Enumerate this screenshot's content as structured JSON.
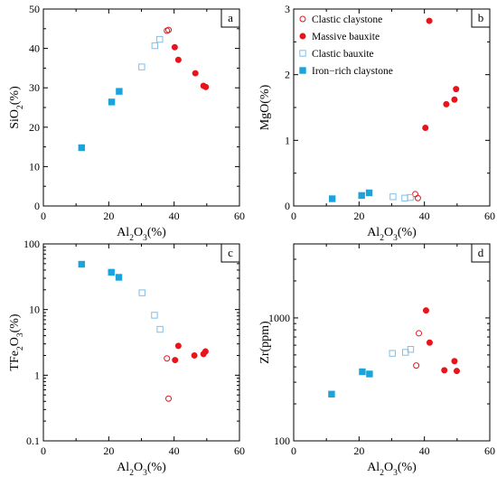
{
  "colors": {
    "red": "#e8141c",
    "blue": "#1aa3dc",
    "light_blue": "#7fbfe8",
    "axis": "#000000"
  },
  "legend_entries": [
    {
      "label": "Clastic claystone",
      "marker": "open-circle"
    },
    {
      "label": "Massive bauxite",
      "marker": "filled-circle"
    },
    {
      "label": "Clastic bauxite",
      "marker": "open-square"
    },
    {
      "label": "Iron−rich claystone",
      "marker": "filled-square"
    }
  ],
  "chart_data": [
    {
      "type": "scatter",
      "panel": "a",
      "xlabel": "Al2O3(%)",
      "ylabel": "SiO2(%)",
      "xlim": [
        0,
        60
      ],
      "ylim": [
        0,
        50
      ],
      "xticks": [
        0,
        20,
        40,
        60
      ],
      "yticks": [
        0,
        10,
        20,
        30,
        40,
        50
      ],
      "yscale": "linear",
      "legend": "none",
      "series": [
        {
          "name": "Clastic claystone",
          "points": [
            [
              37.8,
              44.5
            ],
            [
              38.3,
              44.7
            ]
          ]
        },
        {
          "name": "Massive bauxite",
          "points": [
            [
              40.2,
              40.3
            ],
            [
              41.3,
              37.1
            ],
            [
              46.5,
              33.7
            ],
            [
              49.0,
              30.5
            ],
            [
              49.7,
              30.2
            ]
          ]
        },
        {
          "name": "Clastic bauxite",
          "points": [
            [
              30.1,
              35.3
            ],
            [
              34.1,
              40.7
            ],
            [
              35.6,
              42.3
            ]
          ]
        },
        {
          "name": "Iron−rich claystone",
          "points": [
            [
              11.7,
              14.8
            ],
            [
              20.9,
              26.4
            ],
            [
              23.2,
              29.1
            ]
          ]
        }
      ]
    },
    {
      "type": "scatter",
      "panel": "b",
      "xlabel": "Al2O3(%)",
      "ylabel": "MgO(%)",
      "xlim": [
        0,
        60
      ],
      "ylim": [
        0,
        3
      ],
      "xticks": [
        0,
        20,
        40,
        60
      ],
      "yticks": [
        0,
        1,
        2,
        3
      ],
      "yscale": "linear",
      "legend": "top-left",
      "series": [
        {
          "name": "Clastic claystone",
          "points": [
            [
              37.2,
              0.18
            ],
            [
              38.0,
              0.12
            ]
          ]
        },
        {
          "name": "Massive bauxite",
          "points": [
            [
              40.3,
              1.19
            ],
            [
              41.5,
              2.82
            ],
            [
              46.7,
              1.55
            ],
            [
              49.2,
              1.62
            ],
            [
              49.7,
              1.78
            ]
          ]
        },
        {
          "name": "Clastic bauxite",
          "points": [
            [
              30.4,
              0.14
            ],
            [
              34.0,
              0.12
            ],
            [
              35.7,
              0.13
            ]
          ]
        },
        {
          "name": "Iron−rich claystone",
          "points": [
            [
              11.8,
              0.11
            ],
            [
              20.8,
              0.16
            ],
            [
              23.1,
              0.2
            ]
          ]
        }
      ]
    },
    {
      "type": "scatter",
      "panel": "c",
      "xlabel": "Al2O3(%)",
      "ylabel": "TFe2O3(%)",
      "xlim": [
        0,
        60
      ],
      "ylim": [
        0.1,
        100
      ],
      "xticks": [
        0,
        20,
        40,
        60
      ],
      "yticks": [
        0.1,
        1,
        10,
        100
      ],
      "yscale": "log",
      "legend": "none",
      "series": [
        {
          "name": "Clastic claystone",
          "points": [
            [
              37.8,
              1.8
            ],
            [
              38.3,
              0.44
            ]
          ]
        },
        {
          "name": "Massive bauxite",
          "points": [
            [
              40.3,
              1.7
            ],
            [
              41.3,
              2.8
            ],
            [
              46.2,
              2.0
            ],
            [
              49.0,
              2.1
            ],
            [
              49.6,
              2.3
            ]
          ]
        },
        {
          "name": "Clastic bauxite",
          "points": [
            [
              30.2,
              18.0
            ],
            [
              34.0,
              8.2
            ],
            [
              35.7,
              5.0
            ]
          ]
        },
        {
          "name": "Iron−rich claystone",
          "points": [
            [
              11.7,
              49.0
            ],
            [
              20.8,
              37.0
            ],
            [
              23.1,
              31.0
            ]
          ]
        }
      ]
    },
    {
      "type": "scatter",
      "panel": "d",
      "xlabel": "Al2O3(%)",
      "ylabel": "Zr(ppm)",
      "xlim": [
        0,
        60
      ],
      "ylim": [
        100,
        4000
      ],
      "xticks": [
        0,
        20,
        40,
        60
      ],
      "yticks": [
        100,
        1000
      ],
      "yscale": "log",
      "legend": "none",
      "series": [
        {
          "name": "Clastic claystone",
          "points": [
            [
              37.5,
              410
            ],
            [
              38.3,
              750
            ]
          ]
        },
        {
          "name": "Massive bauxite",
          "points": [
            [
              40.5,
              1150
            ],
            [
              41.6,
              630
            ],
            [
              46.1,
              375
            ],
            [
              49.2,
              445
            ],
            [
              49.9,
              370
            ]
          ]
        },
        {
          "name": "Clastic bauxite",
          "points": [
            [
              30.2,
              515
            ],
            [
              34.2,
              525
            ],
            [
              35.8,
              555
            ]
          ]
        },
        {
          "name": "Iron−rich claystone",
          "points": [
            [
              11.6,
              240
            ],
            [
              21.0,
              365
            ],
            [
              23.2,
              350
            ]
          ]
        }
      ]
    }
  ]
}
